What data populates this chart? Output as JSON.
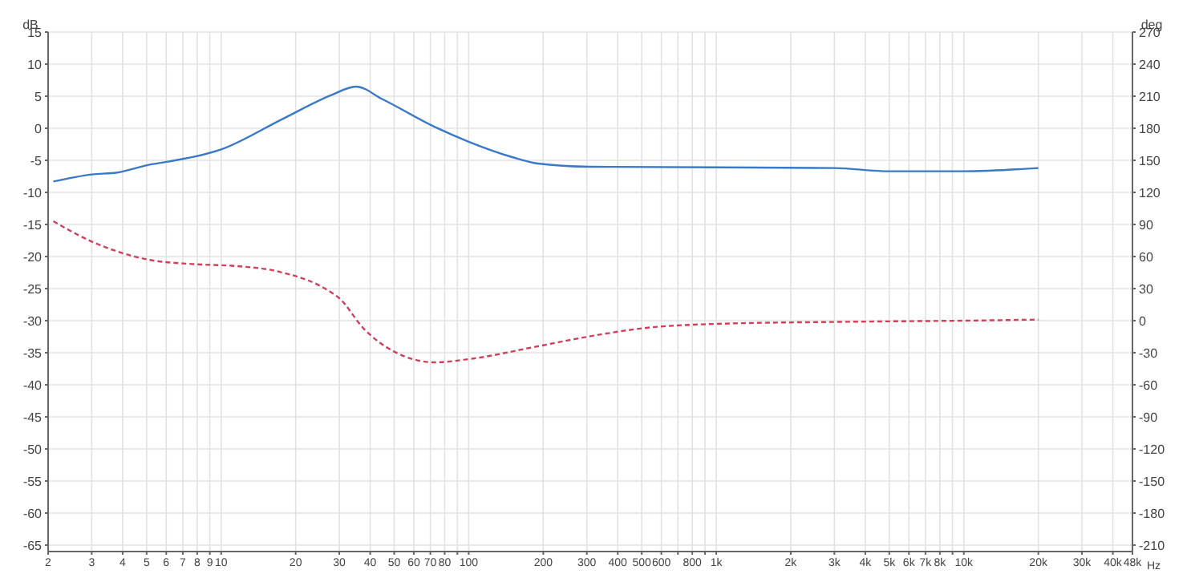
{
  "chart_data": {
    "type": "line",
    "ylabel": "dB",
    "y2label": "deg",
    "xlim": [
      2,
      48000
    ],
    "ylim": [
      -66,
      15
    ],
    "y2lim": [
      -216,
      270
    ],
    "log": "x",
    "grid": true,
    "legend": false,
    "marker": "none",
    "xticks": [
      2,
      3,
      4,
      5,
      6,
      7,
      8,
      9,
      10,
      20,
      30,
      40,
      50,
      60,
      70,
      80,
      {
        "value": 90,
        "label": null
      },
      100,
      200,
      300,
      400,
      500,
      600,
      {
        "value": 700,
        "label": null
      },
      800,
      {
        "value": 900,
        "label": null
      },
      {
        "value": 1000,
        "label": "1k"
      },
      {
        "value": 2000,
        "label": "2k"
      },
      {
        "value": 3000,
        "label": "3k"
      },
      {
        "value": 4000,
        "label": "4k"
      },
      {
        "value": 5000,
        "label": "5k"
      },
      {
        "value": 6000,
        "label": "6k"
      },
      {
        "value": 7000,
        "label": "7k"
      },
      {
        "value": 8000,
        "label": "8k"
      },
      {
        "value": 9000,
        "label": null
      },
      {
        "value": 10000,
        "label": "10k"
      },
      {
        "value": 20000,
        "label": "20k"
      },
      {
        "value": 30000,
        "label": "30k"
      },
      {
        "value": 40000,
        "label": "40k"
      },
      {
        "value": 48000,
        "label": "48k"
      }
    ],
    "xlabel": "Hz",
    "yticks": [
      15,
      10,
      5,
      0,
      -5,
      -10,
      -15,
      -20,
      -25,
      -30,
      -35,
      -40,
      -45,
      -50,
      -55,
      -60,
      -65
    ],
    "y2ticks": [
      270,
      240,
      210,
      180,
      150,
      120,
      90,
      60,
      30,
      0,
      -30,
      -60,
      -90,
      -120,
      -150,
      -180,
      -210
    ],
    "series": [
      {
        "color": "#3a78c8",
        "line_style": "solid",
        "x": [
          2.1,
          3,
          3.8,
          5.1,
          6.1,
          10,
          17.6,
          28,
          35,
          45,
          73,
          100,
          150,
          190,
          307,
          1000,
          3000,
          5000,
          10000,
          20000
        ],
        "values": [
          -8.3,
          -7.2,
          -6.9,
          -5.7,
          -5.2,
          -3.3,
          1.4,
          5.2,
          6.5,
          4.5,
          0.2,
          -2.1,
          -4.5,
          -5.5,
          -6,
          -6.1,
          -6.2,
          -6.7,
          -6.7,
          -6.2
        ]
      },
      {
        "color": "#d0405a",
        "line_style": "dashed",
        "axis": "y2",
        "x": [
          2.1,
          3,
          5.1,
          7.6,
          11.6,
          17,
          28,
          30,
          37.5,
          50,
          73,
          100,
          190,
          320,
          510,
          1000,
          3500,
          10000,
          20000
        ],
        "values": [
          93,
          74,
          57,
          53,
          51,
          46,
          26,
          21,
          -7,
          -29,
          -39,
          -36,
          -24,
          -14,
          -7,
          -3,
          -1,
          0,
          1
        ]
      }
    ]
  }
}
